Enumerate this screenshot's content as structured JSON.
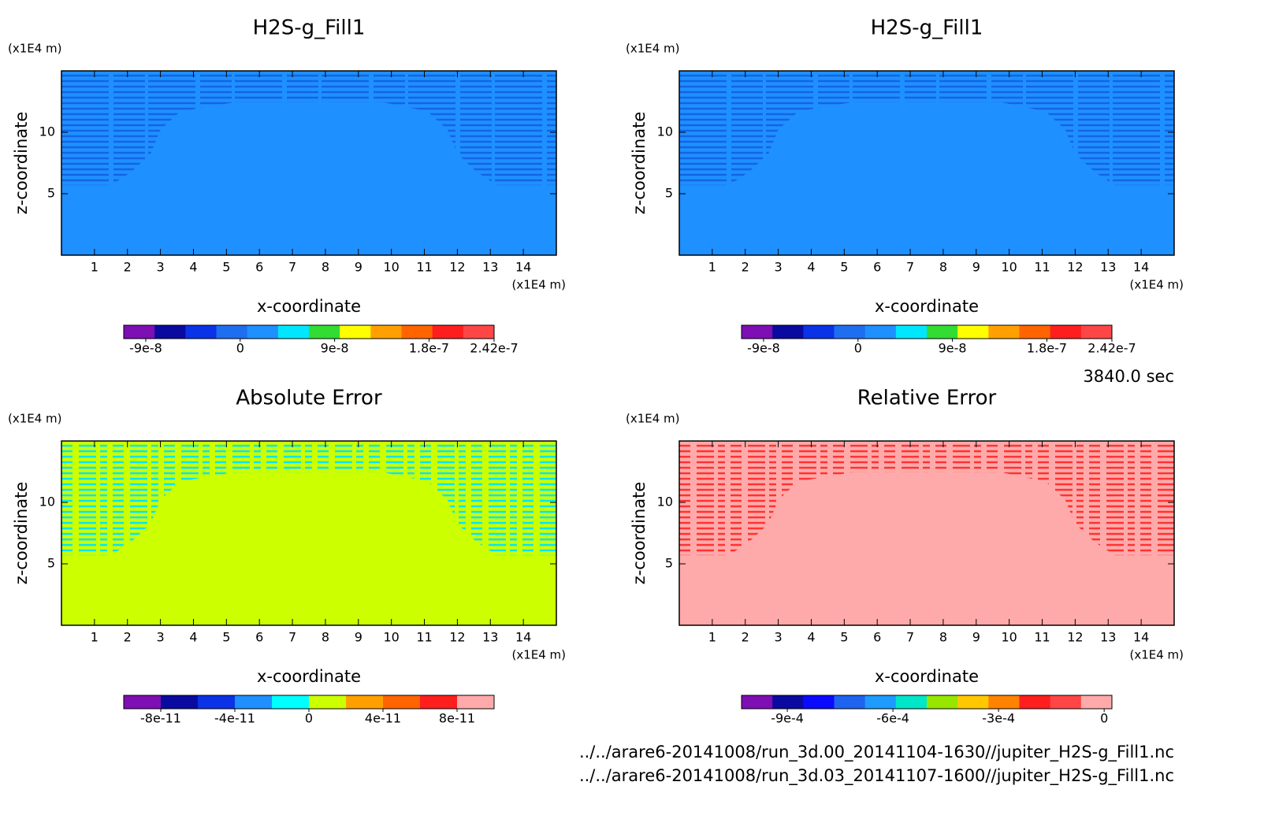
{
  "chart_data": [
    {
      "type": "contour",
      "title": "H2S-g_Fill1",
      "xlabel": "x-coordinate",
      "ylabel": "z-coordinate",
      "xunit": "(x1E4 m)",
      "yunit": "(x1E4 m)",
      "xlim": [
        0,
        15
      ],
      "ylim": [
        0,
        15
      ],
      "xticks": [
        1,
        2,
        3,
        4,
        5,
        6,
        7,
        8,
        9,
        10,
        11,
        12,
        13,
        14
      ],
      "yticks": [
        5,
        10
      ],
      "field_color": "#1e90ff",
      "feature_color": "#1464e6",
      "colorbar": {
        "lim": [
          -1.11e-07,
          2.42e-07
        ],
        "colors": [
          "#7d0fb4",
          "#0a0aa0",
          "#0a32e6",
          "#1e6ef0",
          "#1e90ff",
          "#00e6ff",
          "#32dc32",
          "#ffff00",
          "#ffa000",
          "#ff6400",
          "#ff1e1e",
          "#ff4646"
        ],
        "ticks": [
          {
            "value": -9e-08,
            "label": "-9e-8"
          },
          {
            "value": 0,
            "label": "0"
          },
          {
            "value": 9e-08,
            "label": "9e-8"
          },
          {
            "value": 1.8e-07,
            "label": "1.8e-7"
          },
          {
            "value": 2.42e-07,
            "label": "2.42e-7"
          }
        ]
      }
    },
    {
      "type": "contour",
      "title": "H2S-g_Fill1",
      "xlabel": "x-coordinate",
      "ylabel": "z-coordinate",
      "xunit": "(x1E4 m)",
      "yunit": "(x1E4 m)",
      "xlim": [
        0,
        15
      ],
      "ylim": [
        0,
        15
      ],
      "xticks": [
        1,
        2,
        3,
        4,
        5,
        6,
        7,
        8,
        9,
        10,
        11,
        12,
        13,
        14
      ],
      "yticks": [
        5,
        10
      ],
      "field_color": "#1e90ff",
      "feature_color": "#1464e6",
      "colorbar": {
        "lim": [
          -1.11e-07,
          2.42e-07
        ],
        "colors": [
          "#7d0fb4",
          "#0a0aa0",
          "#0a32e6",
          "#1e6ef0",
          "#1e90ff",
          "#00e6ff",
          "#32dc32",
          "#ffff00",
          "#ffa000",
          "#ff6400",
          "#ff1e1e",
          "#ff4646"
        ],
        "ticks": [
          {
            "value": -9e-08,
            "label": "-9e-8"
          },
          {
            "value": 0,
            "label": "0"
          },
          {
            "value": 9e-08,
            "label": "9e-8"
          },
          {
            "value": 1.8e-07,
            "label": "1.8e-7"
          },
          {
            "value": 2.42e-07,
            "label": "2.42e-7"
          }
        ]
      }
    },
    {
      "type": "contour",
      "title": "Absolute Error",
      "xlabel": "x-coordinate",
      "ylabel": "z-coordinate",
      "xunit": "(x1E4 m)",
      "yunit": "(x1E4 m)",
      "xlim": [
        0,
        15
      ],
      "ylim": [
        0,
        15
      ],
      "xticks": [
        1,
        2,
        3,
        4,
        5,
        6,
        7,
        8,
        9,
        10,
        11,
        12,
        13,
        14
      ],
      "yticks": [
        5,
        10
      ],
      "field_color": "#ccff00",
      "feature_color": "#00e6ff",
      "colorbar": {
        "lim": [
          -1e-10,
          1e-10
        ],
        "colors": [
          "#7d0fb4",
          "#0a0aa0",
          "#0a32e6",
          "#1e90ff",
          "#00ffff",
          "#ccff00",
          "#ffa000",
          "#ff6400",
          "#ff1e1e",
          "#ffaaaa"
        ],
        "ticks": [
          {
            "value": -8e-11,
            "label": "-8e-11"
          },
          {
            "value": -4e-11,
            "label": "-4e-11"
          },
          {
            "value": 0,
            "label": "0"
          },
          {
            "value": 4e-11,
            "label": "4e-11"
          },
          {
            "value": 8e-11,
            "label": "8e-11"
          }
        ]
      }
    },
    {
      "type": "contour",
      "title": "Relative Error",
      "xlabel": "x-coordinate",
      "ylabel": "z-coordinate",
      "xunit": "(x1E4 m)",
      "yunit": "(x1E4 m)",
      "xlim": [
        0,
        15
      ],
      "ylim": [
        0,
        15
      ],
      "xticks": [
        1,
        2,
        3,
        4,
        5,
        6,
        7,
        8,
        9,
        10,
        11,
        12,
        13,
        14
      ],
      "yticks": [
        5,
        10
      ],
      "field_color": "#ffaaaa",
      "feature_color": "#ff3232",
      "colorbar": {
        "lim": [
          -0.00103,
          2.2e-05
        ],
        "colors": [
          "#7d0fb4",
          "#0a0aa0",
          "#0a0aff",
          "#1e64f0",
          "#1e9bff",
          "#00e6c8",
          "#96e600",
          "#ffc800",
          "#ff8200",
          "#ff1e1e",
          "#ff4646",
          "#ffaaaa"
        ],
        "ticks": [
          {
            "value": -0.0009,
            "label": "-9e-4"
          },
          {
            "value": -0.0006,
            "label": "-6e-4"
          },
          {
            "value": -0.0003,
            "label": "-3e-4"
          },
          {
            "value": 0,
            "label": "0"
          }
        ]
      }
    }
  ],
  "annotations": {
    "time": "3840.0 sec",
    "files": [
      "../../arare6-20141008/run_3d.00_20141104-1630//jupiter_H2S-g_Fill1.nc",
      "../../arare6-20141008/run_3d.03_20141107-1600//jupiter_H2S-g_Fill1.nc"
    ]
  }
}
